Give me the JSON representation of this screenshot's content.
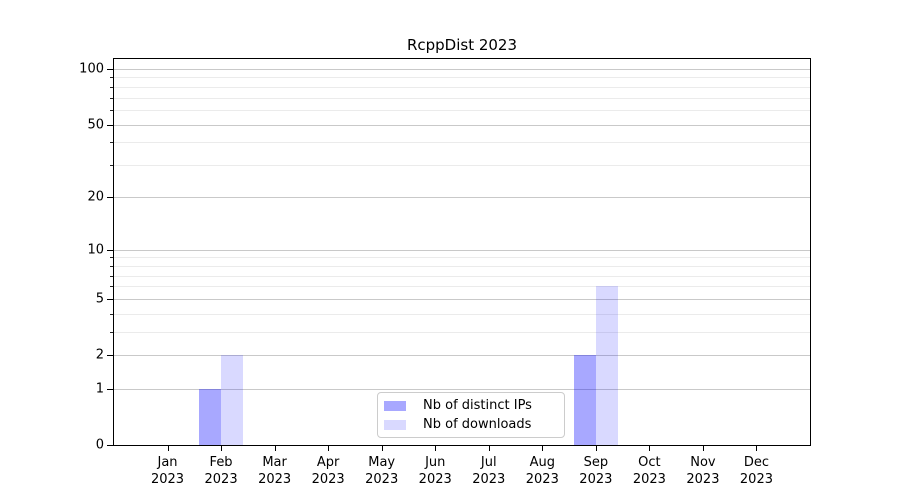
{
  "chart_data": {
    "type": "bar",
    "title": "RcppDist 2023",
    "categories": [
      "Jan",
      "Feb",
      "Mar",
      "Apr",
      "May",
      "Jun",
      "Jul",
      "Aug",
      "Sep",
      "Oct",
      "Nov",
      "Dec"
    ],
    "year": "2023",
    "series": [
      {
        "name": "Nb of distinct IPs",
        "color": "#0000FF",
        "alpha": 0.34,
        "values": [
          0,
          1,
          0,
          0,
          0,
          0,
          0,
          0,
          2,
          0,
          0,
          0
        ]
      },
      {
        "name": "Nb of downloads",
        "color": "#0000FF",
        "alpha": 0.15,
        "values": [
          0,
          2,
          0,
          0,
          0,
          0,
          0,
          0,
          6,
          0,
          0,
          0
        ]
      }
    ],
    "y_axis": {
      "scale": "log1p",
      "max": 113,
      "major_ticks": [
        0,
        1,
        2,
        5,
        10,
        20,
        50,
        100
      ],
      "major_tick_labels": [
        "0",
        "1",
        "2",
        "5",
        "10",
        "20",
        "50",
        "100"
      ],
      "minor_ticks": [
        3,
        4,
        6,
        7,
        8,
        9,
        30,
        40,
        60,
        70,
        80,
        90
      ]
    },
    "x_axis": {
      "tick_line1": [
        "Jan",
        "Feb",
        "Mar",
        "Apr",
        "May",
        "Jun",
        "Jul",
        "Aug",
        "Sep",
        "Oct",
        "Nov",
        "Dec"
      ],
      "tick_line2": "2023"
    },
    "grid": {
      "major_color": "#c9c9c9",
      "minor_color": "#ebebeb"
    },
    "legend": {
      "position": "bottom-center",
      "border_color": "#cccccc",
      "background": "#ffffff"
    },
    "plot_border_color": "#000000",
    "background_color": "#ffffff"
  }
}
